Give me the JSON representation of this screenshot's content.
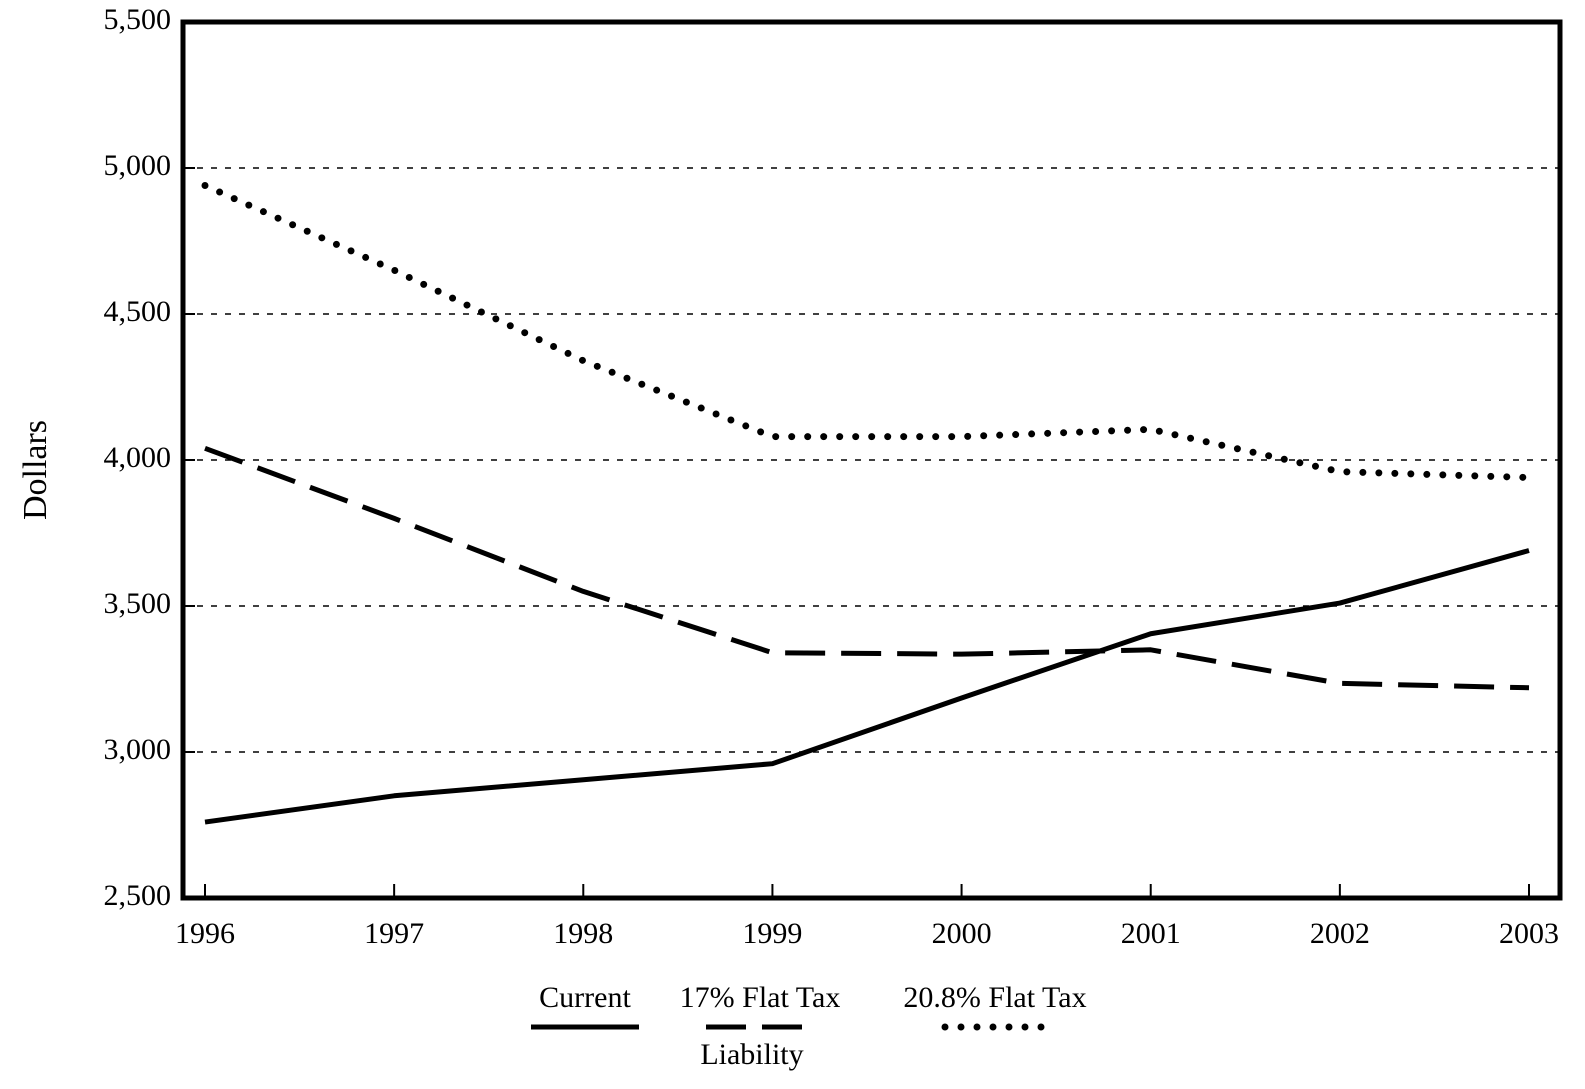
{
  "chart_data": {
    "type": "line",
    "categories": [
      "1996",
      "1997",
      "1998",
      "1999",
      "2000",
      "2001",
      "2002",
      "2003"
    ],
    "series": [
      {
        "name": "Current",
        "color": "#000000",
        "style": "solid",
        "values": [
          2760,
          2850,
          2905,
          2960,
          3185,
          3405,
          3510,
          3690
        ]
      },
      {
        "name": "17% Flat Tax",
        "color": "#000000",
        "style": "dashed",
        "values": [
          4040,
          3800,
          3550,
          3340,
          3335,
          3350,
          3235,
          3220
        ]
      },
      {
        "name": "20.8% Flat Tax",
        "color": "#000000",
        "style": "dotted",
        "values": [
          4940,
          4650,
          4340,
          4080,
          4080,
          4105,
          3960,
          3940
        ]
      }
    ],
    "y_label": "Dollars",
    "x_label": "Liability",
    "ylim": [
      2500,
      5500
    ],
    "yticks": [
      {
        "value": 2500,
        "label": "2,500"
      },
      {
        "value": 3000,
        "label": "3,000"
      },
      {
        "value": 3500,
        "label": "3,500"
      },
      {
        "value": 4000,
        "label": "4,000"
      },
      {
        "value": 4500,
        "label": "4,500"
      },
      {
        "value": 5000,
        "label": "5,000"
      },
      {
        "value": 5500,
        "label": "5,500"
      }
    ],
    "grid": true,
    "legend": "bottom"
  }
}
